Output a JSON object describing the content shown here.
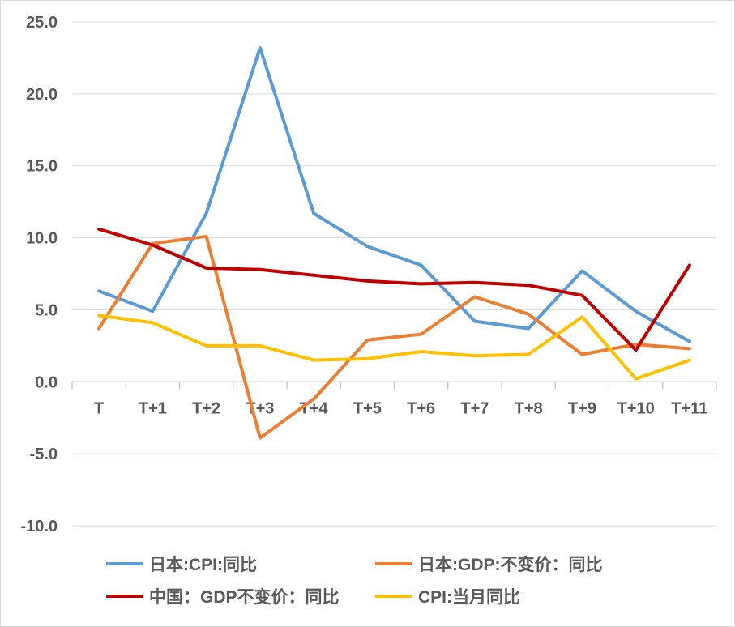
{
  "chart_data": {
    "type": "line",
    "title": "",
    "xlabel": "",
    "ylabel": "",
    "categories": [
      "T",
      "T+1",
      "T+2",
      "T+3",
      "T+4",
      "T+5",
      "T+6",
      "T+7",
      "T+8",
      "T+9",
      "T+10",
      "T+11"
    ],
    "ylim": [
      -10,
      25
    ],
    "yticks": [
      25.0,
      20.0,
      15.0,
      10.0,
      5.0,
      0.0,
      -5.0,
      -10.0
    ],
    "ytick_labels": [
      "25.0",
      "20.0",
      "15.0",
      "10.0",
      "5.0",
      "0.0",
      "-5.0",
      "-10.0"
    ],
    "grid": true,
    "legend_position": "bottom",
    "series": [
      {
        "name": "日本:CPI:同比",
        "color": "#5b9bd5",
        "values": [
          6.3,
          4.9,
          11.7,
          23.2,
          11.7,
          9.4,
          8.1,
          4.2,
          3.7,
          7.7,
          4.9,
          2.8
        ]
      },
      {
        "name": "日本:GDP:不变价：同比",
        "color": "#ed7d31",
        "values": [
          3.7,
          9.6,
          10.1,
          -3.9,
          -1.2,
          2.9,
          3.3,
          5.9,
          4.7,
          1.9,
          2.6,
          2.3
        ]
      },
      {
        "name": "中国：GDP不变价：同比",
        "color": "#c00000",
        "values": [
          10.6,
          9.5,
          7.9,
          7.8,
          7.4,
          7.0,
          6.8,
          6.9,
          6.7,
          6.0,
          2.2,
          8.1
        ]
      },
      {
        "name": "CPI:当月同比",
        "color": "#ffc000",
        "values": [
          4.6,
          4.1,
          2.5,
          2.5,
          1.5,
          1.6,
          2.1,
          1.8,
          1.9,
          4.5,
          0.2,
          1.5
        ]
      }
    ]
  }
}
